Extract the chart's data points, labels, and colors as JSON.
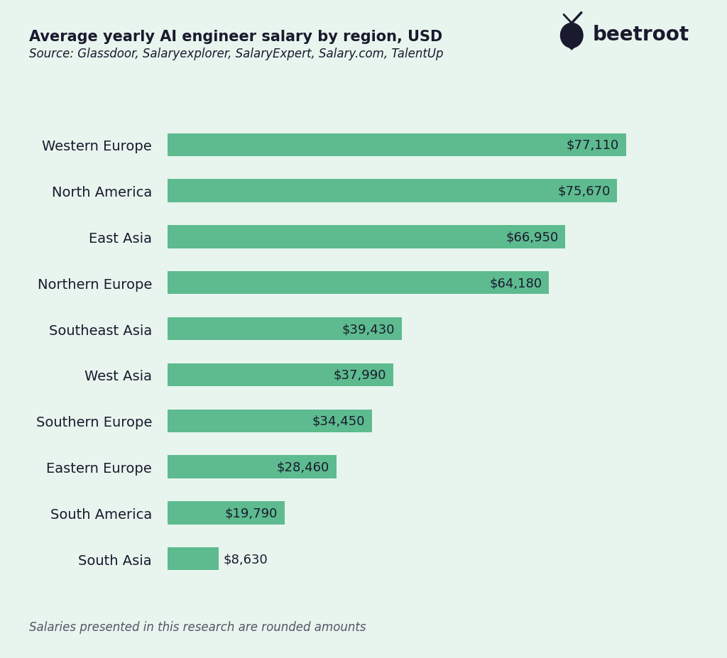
{
  "title": "Average yearly AI engineer salary by region, USD",
  "source": "Source: Glassdoor, Salaryexplorer, SalaryExpert, Salary.com, TalentUp",
  "footer": "Salaries presented in this research are rounded amounts",
  "logo_text": "● beetroot",
  "background_color": "#e8f5ee",
  "bar_color": "#5dbb8f",
  "text_color": "#1a1a2e",
  "label_inside_color": "#1a1a2e",
  "label_outside_color": "#1a1a2e",
  "categories": [
    "Western Europe",
    "North America",
    "East Asia",
    "Northern Europe",
    "Southeast Asia",
    "West Asia",
    "Southern Europe",
    "Eastern Europe",
    "South America",
    "South Asia"
  ],
  "values": [
    77110,
    75670,
    66950,
    64180,
    39430,
    37990,
    34450,
    28460,
    19790,
    8630
  ],
  "labels": [
    "$77,110",
    "$75,670",
    "$66,950",
    "$64,180",
    "$39,430",
    "$37,990",
    "$34,450",
    "$28,460",
    "$19,790",
    "$8,630"
  ],
  "inside_label_threshold": 15000,
  "title_fontsize": 15,
  "source_fontsize": 12,
  "bar_label_fontsize": 13,
  "category_fontsize": 14,
  "footer_fontsize": 12,
  "bar_height": 0.5,
  "xlim_max": 88000
}
